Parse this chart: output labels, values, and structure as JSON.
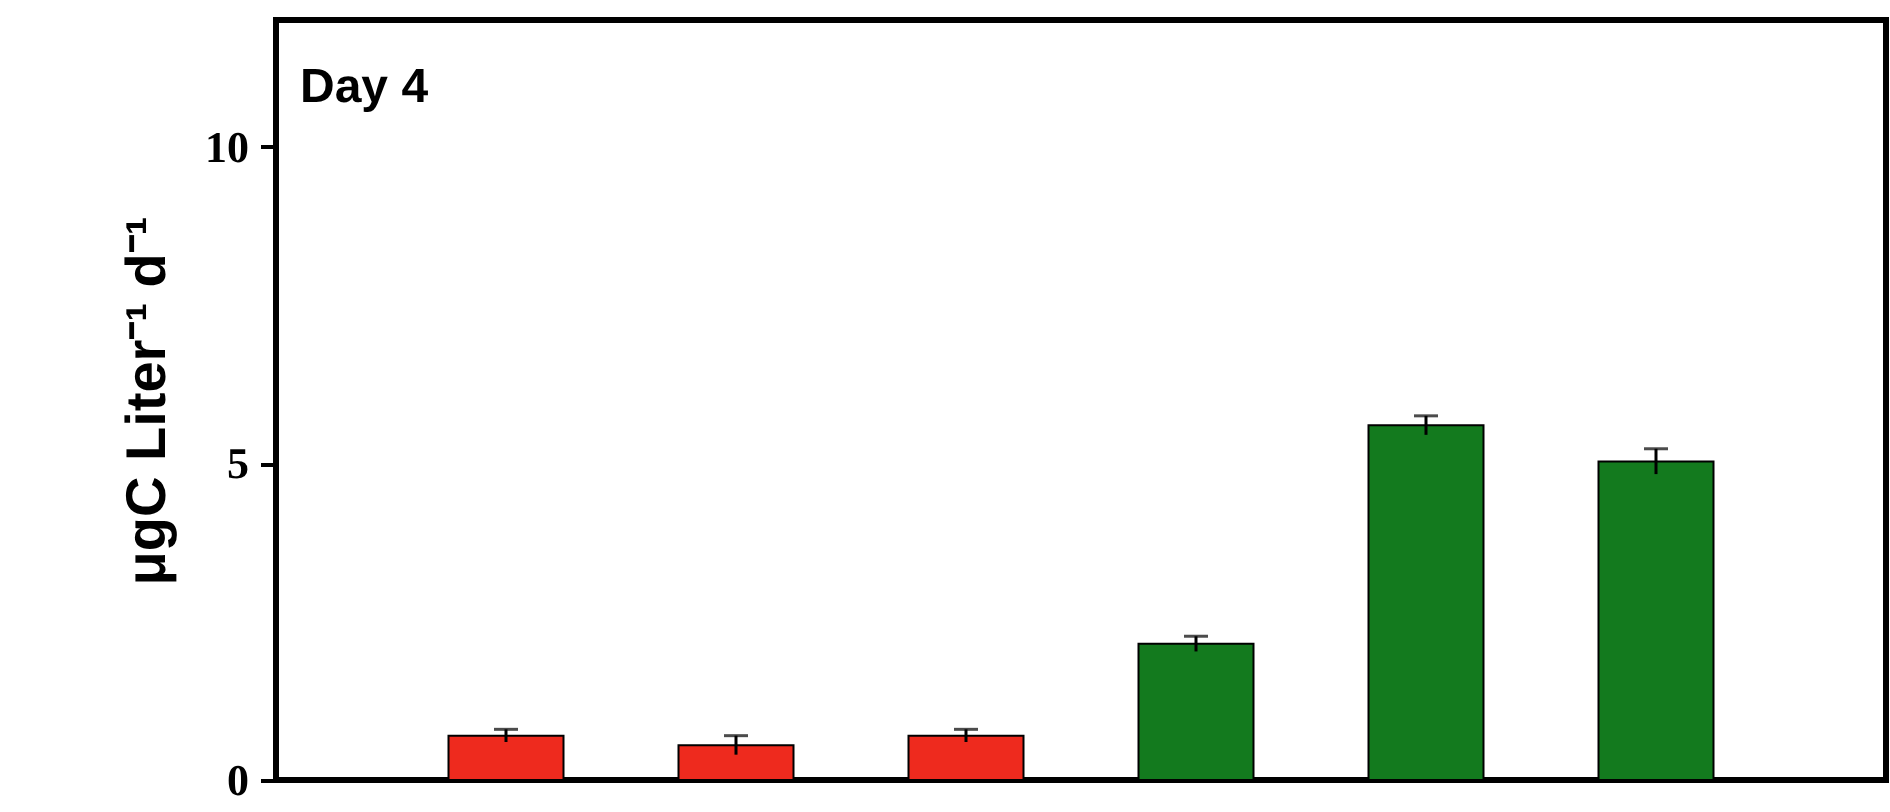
{
  "chart_data": {
    "type": "bar",
    "ylabel": "μgC Liter⁻¹ d⁻¹",
    "annotations": [
      "Day 4"
    ],
    "categories": [
      null,
      null,
      null,
      null,
      null,
      null
    ],
    "values": [
      0.7,
      0.55,
      0.7,
      2.15,
      5.6,
      5.03
    ],
    "errors": [
      0.1,
      0.15,
      0.1,
      0.12,
      0.15,
      0.2
    ],
    "colors": [
      "#ee2a1e",
      "#ee2a1e",
      "#ee2a1e",
      "#137a1e",
      "#137a1e",
      "#137a1e"
    ],
    "ylim": [
      0,
      12
    ],
    "yticks": [
      0,
      5,
      10
    ],
    "tick_labels": "y",
    "grid": false
  }
}
